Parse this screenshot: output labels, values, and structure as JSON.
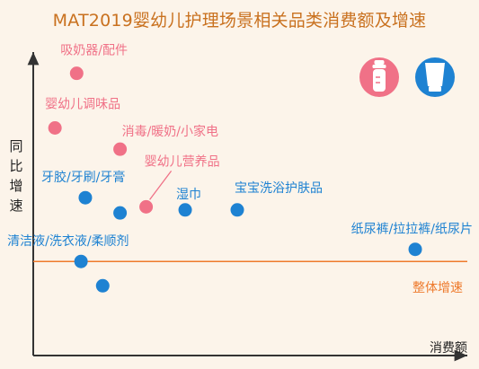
{
  "title": "MAT2019婴幼儿护理场景相关品类消费额及增速",
  "icons": [
    {
      "name": "baby-bottle-icon",
      "color": "#F07187"
    },
    {
      "name": "lotion-tube-icon",
      "color": "#1E82D2"
    }
  ],
  "colors": {
    "pink": "#F07187",
    "blue": "#1E82D2",
    "orange": "#EE7A2C",
    "title": "#C9711F",
    "axis": "#333333"
  },
  "chart_data": {
    "type": "scatter",
    "title": "MAT2019婴幼儿护理场景相关品类消费额及增速",
    "xlabel": "消费额",
    "ylabel": "同比增速",
    "xticks": [],
    "yticks": [],
    "grid": false,
    "xlim": [
      0,
      100
    ],
    "ylim": [
      0,
      100
    ],
    "reference_line": {
      "label": "整体增速",
      "y": 31,
      "color": "#EE7A2C"
    },
    "points": [
      {
        "label": "吸奶器/配件",
        "x": 10,
        "y": 93,
        "color": "#F07187"
      },
      {
        "label": "婴幼儿调味品",
        "x": 5,
        "y": 75,
        "color": "#F07187"
      },
      {
        "label": "消毒/暖奶/小家电",
        "x": 20,
        "y": 68,
        "color": "#F07187"
      },
      {
        "label": "婴幼儿营养品",
        "x": 26,
        "y": 49,
        "color": "#F07187"
      },
      {
        "label": "牙胶/牙刷/牙膏",
        "x": 12,
        "y": 52,
        "color": "#1E82D2"
      },
      {
        "label": "",
        "x": 20,
        "y": 47,
        "color": "#1E82D2"
      },
      {
        "label": "湿巾",
        "x": 35,
        "y": 48,
        "color": "#1E82D2"
      },
      {
        "label": "宝宝洗浴护肤品",
        "x": 47,
        "y": 48,
        "color": "#1E82D2"
      },
      {
        "label": "纸尿裤/拉拉裤/纸尿片",
        "x": 88,
        "y": 35,
        "color": "#1E82D2"
      },
      {
        "label": "清洁液/洗衣液/柔顺剂",
        "x": 11,
        "y": 31,
        "color": "#1E82D2"
      },
      {
        "label": "",
        "x": 16,
        "y": 23,
        "color": "#1E82D2"
      }
    ]
  }
}
